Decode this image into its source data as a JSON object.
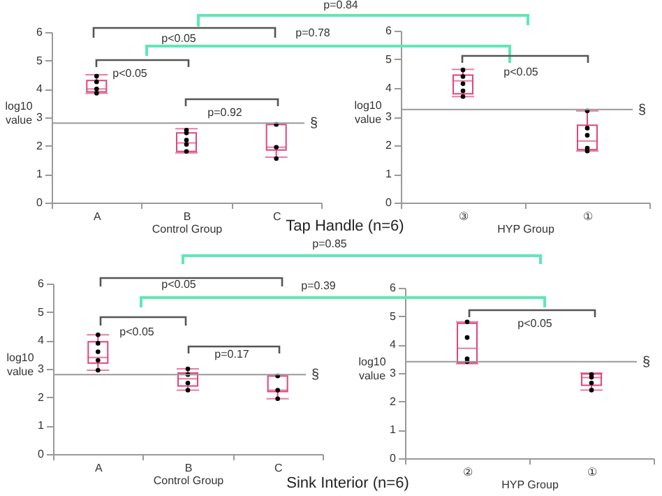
{
  "chart_data": [
    {
      "type": "box",
      "title": "Tap Handle (n=6)",
      "xlabel": "Control Group",
      "ylabel": "log10 value",
      "categories": [
        "A",
        "B",
        "C"
      ],
      "ylim": [
        0,
        6
      ],
      "yticks": [
        0,
        1,
        2,
        3,
        4,
        5,
        6
      ],
      "series": [
        {
          "type": "box",
          "color": "#e0457b",
          "boxes": [
            {
              "low": 3.85,
              "q1": 3.9,
              "median": 4.0,
              "q3": 4.3,
              "high": 4.5
            },
            {
              "low": 1.75,
              "q1": 1.8,
              "median": 2.1,
              "q3": 2.45,
              "high": 2.6
            },
            {
              "low": 1.6,
              "q1": 1.85,
              "median": 1.95,
              "q3": 2.75,
              "high": 2.75
            }
          ]
        },
        {
          "type": "scatter",
          "color": "#000000",
          "x": [
            "A",
            "A",
            "A",
            "A",
            "B",
            "B",
            "B",
            "B",
            "B",
            "C",
            "C",
            "C"
          ],
          "values": [
            4.45,
            4.25,
            4.0,
            3.85,
            2.55,
            2.45,
            2.2,
            2.05,
            1.8,
            2.75,
            1.95,
            1.55
          ]
        }
      ],
      "ref_lines": [
        {
          "axis": "y",
          "value": 2.8,
          "label": "§",
          "color": "#999999"
        }
      ],
      "annotations": [
        "p<0.05",
        "p=0.92",
        "p<0.05",
        "p=0.84",
        "p=0.78"
      ]
    },
    {
      "type": "box",
      "xlabel": "HYP Group",
      "ylabel": "log10 value",
      "categories": [
        "③",
        "①"
      ],
      "ylim": [
        0,
        6
      ],
      "yticks": [
        0,
        1,
        2,
        3,
        4,
        5,
        6
      ],
      "series": [
        {
          "type": "box",
          "color": "#e0457b",
          "boxes": [
            {
              "low": 3.7,
              "q1": 3.8,
              "median": 4.25,
              "q3": 4.45,
              "high": 4.65
            },
            {
              "low": 1.8,
              "q1": 1.85,
              "median": 2.15,
              "q3": 2.7,
              "high": 3.2
            }
          ]
        },
        {
          "type": "scatter",
          "color": "#000000",
          "x": [
            "③",
            "③",
            "③",
            "③",
            "③",
            "①",
            "①",
            "①",
            "①",
            "①"
          ],
          "values": [
            4.63,
            4.4,
            4.15,
            3.9,
            3.7,
            3.2,
            2.6,
            2.35,
            1.9,
            1.8
          ]
        }
      ],
      "ref_lines": [
        {
          "axis": "y",
          "value": 3.25,
          "label": "§",
          "color": "#999999"
        }
      ],
      "annotations": [
        "p<0.05"
      ]
    },
    {
      "type": "box",
      "title": "Sink Interior (n=6)",
      "xlabel": "Control Group",
      "ylabel": "log10 value",
      "categories": [
        "A",
        "B",
        "C"
      ],
      "ylim": [
        0,
        6
      ],
      "yticks": [
        0,
        1,
        2,
        3,
        4,
        5,
        6
      ],
      "series": [
        {
          "type": "box",
          "color": "#e0457b",
          "boxes": [
            {
              "low": 2.95,
              "q1": 3.2,
              "median": 3.4,
              "q3": 3.95,
              "high": 4.2
            },
            {
              "low": 2.25,
              "q1": 2.4,
              "median": 2.65,
              "q3": 2.85,
              "high": 3.0
            },
            {
              "low": 1.95,
              "q1": 2.2,
              "median": 2.25,
              "q3": 2.75,
              "high": 2.75
            }
          ]
        },
        {
          "type": "scatter",
          "color": "#000000",
          "x": [
            "A",
            "A",
            "A",
            "A",
            "A",
            "B",
            "B",
            "B",
            "B",
            "C",
            "C",
            "C"
          ],
          "values": [
            4.2,
            3.9,
            3.6,
            3.3,
            2.95,
            3.0,
            2.8,
            2.5,
            2.25,
            2.75,
            2.25,
            1.95
          ]
        }
      ],
      "ref_lines": [
        {
          "axis": "y",
          "value": 2.8,
          "label": "§",
          "color": "#999999"
        }
      ],
      "annotations": [
        "p<0.05",
        "p=0.17",
        "p<0.05",
        "p=0.85",
        "p=0.39"
      ]
    },
    {
      "type": "box",
      "xlabel": "HYP Group",
      "ylabel": "log10 value",
      "categories": [
        "②",
        "①"
      ],
      "ylim": [
        0,
        6
      ],
      "yticks": [
        0,
        1,
        2,
        3,
        4,
        5,
        6
      ],
      "series": [
        {
          "type": "box",
          "color": "#e0457b",
          "boxes": [
            {
              "low": 3.33,
              "q1": 3.36,
              "median": 3.87,
              "q3": 4.75,
              "high": 4.8
            },
            {
              "low": 2.4,
              "q1": 2.57,
              "median": 2.84,
              "q3": 2.97,
              "high": 3.0
            }
          ]
        },
        {
          "type": "scatter",
          "color": "#000000",
          "x": [
            "②",
            "②",
            "②",
            "②",
            "①",
            "①",
            "①",
            "①"
          ],
          "values": [
            4.8,
            4.25,
            3.5,
            3.4,
            2.95,
            2.85,
            2.65,
            2.4
          ]
        }
      ],
      "ref_lines": [
        {
          "axis": "y",
          "value": 3.4,
          "label": "§",
          "color": "#999999"
        }
      ],
      "annotations": [
        "p<0.05"
      ]
    }
  ]
}
